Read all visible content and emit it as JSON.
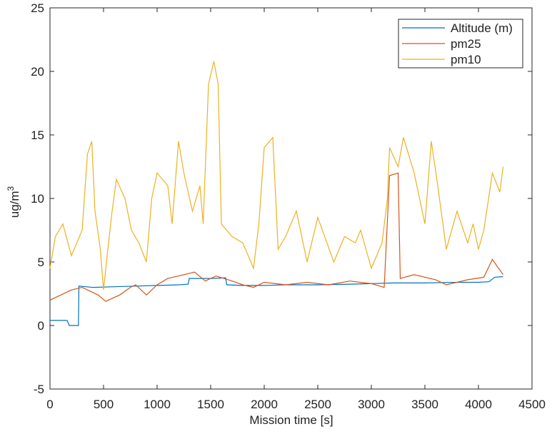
{
  "chart_data": {
    "type": "line",
    "xlabel": "Mission time [s]",
    "ylabel": {
      "base": "ug/m",
      "superscript": "3"
    },
    "xlim": [
      0,
      4500
    ],
    "ylim": [
      -5,
      25
    ],
    "xticks": [
      0,
      500,
      1000,
      1500,
      2000,
      2500,
      3000,
      3500,
      4000,
      4500
    ],
    "yticks": [
      -5,
      0,
      5,
      10,
      15,
      20,
      25
    ],
    "legend": "upper right",
    "series": [
      {
        "name": "Altitude (m)",
        "color": "#0072BD",
        "x": [
          0,
          100,
          160,
          180,
          250,
          265,
          270,
          400,
          600,
          800,
          1000,
          1200,
          1290,
          1300,
          1500,
          1640,
          1650,
          1800,
          2000,
          2200,
          2500,
          2800,
          3000,
          3200,
          3500,
          3800,
          4000,
          4100,
          4150,
          4230
        ],
        "values": [
          0.4,
          0.4,
          0.4,
          0.0,
          0.0,
          0.0,
          3.1,
          3.0,
          3.05,
          3.1,
          3.15,
          3.2,
          3.25,
          3.7,
          3.7,
          3.75,
          3.2,
          3.15,
          3.15,
          3.2,
          3.2,
          3.25,
          3.3,
          3.35,
          3.35,
          3.4,
          3.4,
          3.45,
          3.8,
          3.85
        ]
      },
      {
        "name": "pm25",
        "color": "#D95319",
        "x": [
          0,
          200,
          300,
          450,
          520,
          650,
          750,
          800,
          900,
          1000,
          1100,
          1200,
          1350,
          1450,
          1550,
          1700,
          1800,
          1900,
          2000,
          2200,
          2400,
          2600,
          2800,
          3000,
          3120,
          3170,
          3250,
          3270,
          3400,
          3600,
          3700,
          3900,
          4050,
          4130,
          4230
        ],
        "values": [
          2.0,
          2.8,
          3.0,
          2.4,
          1.9,
          2.4,
          3.0,
          3.2,
          2.4,
          3.2,
          3.7,
          3.9,
          4.2,
          3.5,
          3.9,
          3.5,
          3.2,
          3.0,
          3.4,
          3.2,
          3.4,
          3.2,
          3.5,
          3.3,
          3.0,
          11.8,
          12.0,
          3.7,
          4.0,
          3.6,
          3.2,
          3.6,
          3.8,
          5.2,
          4.0
        ]
      },
      {
        "name": "pm10",
        "color": "#EDB120",
        "x": [
          0,
          50,
          120,
          200,
          250,
          300,
          350,
          390,
          420,
          470,
          500,
          540,
          580,
          620,
          700,
          760,
          830,
          900,
          950,
          1000,
          1100,
          1140,
          1200,
          1250,
          1330,
          1400,
          1430,
          1480,
          1530,
          1570,
          1600,
          1700,
          1800,
          1900,
          1950,
          2000,
          2080,
          2130,
          2200,
          2300,
          2400,
          2500,
          2650,
          2750,
          2850,
          2900,
          3000,
          3100,
          3150,
          3170,
          3250,
          3300,
          3400,
          3500,
          3560,
          3620,
          3700,
          3800,
          3900,
          3950,
          4000,
          4050,
          4130,
          4200,
          4230
        ],
        "values": [
          4.5,
          7,
          8,
          5.5,
          6.5,
          7.5,
          13.5,
          14.5,
          9,
          6,
          2.8,
          6,
          9,
          11.5,
          10,
          7.5,
          6.5,
          5,
          10,
          12,
          11,
          8,
          14.5,
          12,
          9,
          11,
          8,
          19,
          20.8,
          19,
          8,
          7,
          6.5,
          4.5,
          8,
          14,
          14.8,
          6,
          7,
          9,
          5,
          8.5,
          5,
          7,
          6.5,
          7.5,
          4.5,
          6.5,
          10,
          14,
          12.5,
          14.8,
          12,
          8,
          14.5,
          11,
          6,
          9,
          6.5,
          8,
          6,
          7.5,
          12,
          10.5,
          12.5
        ]
      }
    ]
  }
}
